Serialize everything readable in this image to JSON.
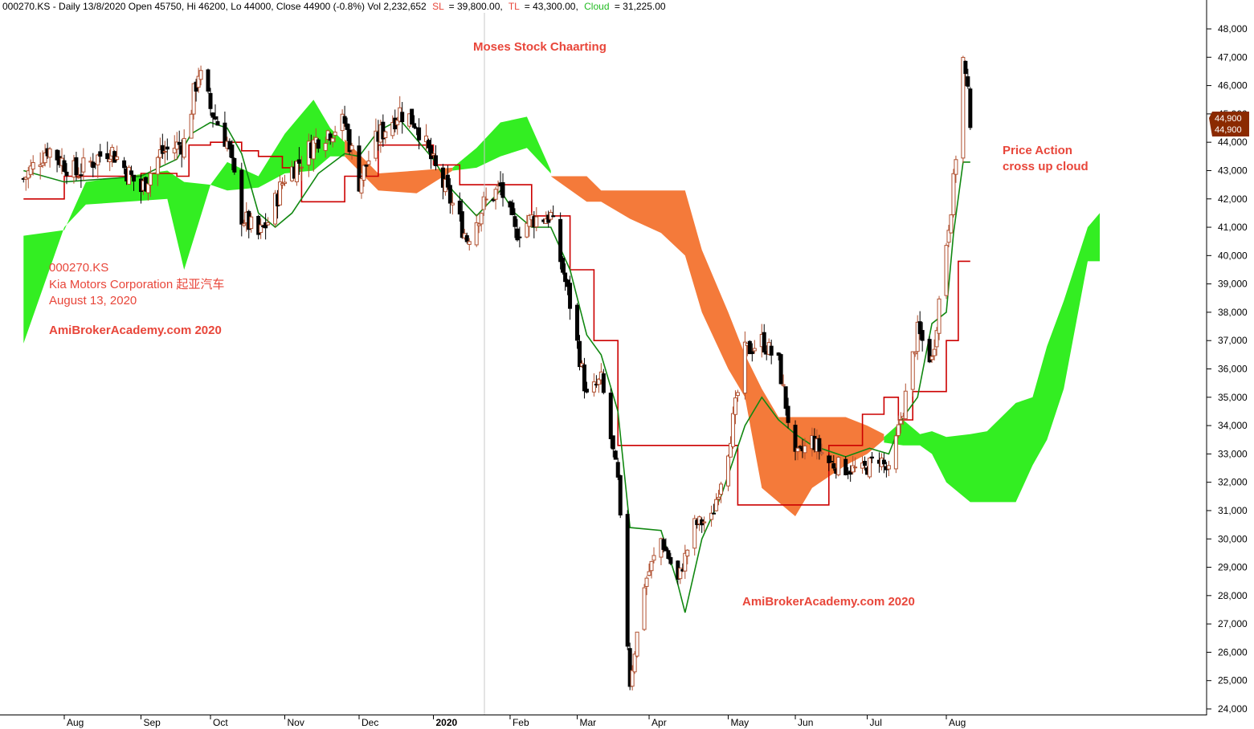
{
  "header": {
    "symbol_info": "000270.KS - Daily 13/8/2020 Open 45750, Hi 46200, Lo 44000, Close 44900 (-0.8%) Vol 2,232,652",
    "sl_label": "SL",
    "sl_value": "= 39,800.00,",
    "tl_label": "TL",
    "tl_value": "= 43,300.00,",
    "cloud_label": "Cloud",
    "cloud_value": "= 31,225.00"
  },
  "annotations": {
    "title": "Moses Stock Chaarting",
    "symbol": "000270.KS",
    "company": "Kia Motors Corporation 起亚汽车",
    "date": "August 13, 2020",
    "watermark_left": "AmiBrokerAcademy.com  2020",
    "watermark_bottom": "AmiBrokerAcademy.com 2020",
    "price_action_1": "Price Action",
    "price_action_2": "cross up cloud"
  },
  "price_badges": [
    "44,900",
    "44,900"
  ],
  "colors": {
    "cloud_bull": "#33ee22",
    "cloud_bear": "#f47a3a",
    "tenkan": "#cc0000",
    "kijun": "#118811",
    "candle_up": "#b05030",
    "candle_down": "#000000",
    "badge": "#8b2a00",
    "sl_text": "#e8463a",
    "cloud_text": "#22bb22"
  },
  "chart_data": {
    "type": "candlestick",
    "x_type": "date",
    "x_range": [
      "2019-07-15",
      "2020-08-13"
    ],
    "ylim": [
      23700,
      48500
    ],
    "y_ticks": [
      "24,000",
      "25,000",
      "26,000",
      "27,000",
      "28,000",
      "29,000",
      "30,000",
      "31,000",
      "32,000",
      "33,000",
      "34,000",
      "35,000",
      "36,000",
      "37,000",
      "38,000",
      "39,000",
      "40,000",
      "41,000",
      "42,000",
      "43,000",
      "44,000",
      "45,000",
      "46,000",
      "47,000",
      "48,000"
    ],
    "x_ticks": [
      {
        "date": "2019-08-01",
        "label": "Aug"
      },
      {
        "date": "2019-09-02",
        "label": "Sep"
      },
      {
        "date": "2019-10-01",
        "label": "Oct"
      },
      {
        "date": "2019-11-01",
        "label": "Nov"
      },
      {
        "date": "2019-12-02",
        "label": "Dec"
      },
      {
        "date": "2020-01-02",
        "label": "2020"
      },
      {
        "date": "2020-02-03",
        "label": "Feb"
      },
      {
        "date": "2020-03-02",
        "label": "Mar"
      },
      {
        "date": "2020-04-01",
        "label": "Apr"
      },
      {
        "date": "2020-05-04",
        "label": "May"
      },
      {
        "date": "2020-06-01",
        "label": "Jun"
      },
      {
        "date": "2020-07-01",
        "label": "Jul"
      },
      {
        "date": "2020-08-03",
        "label": "Aug"
      }
    ],
    "last_close": 44900,
    "sl": 39800,
    "tl": 43300,
    "cloud": 31225,
    "price": [
      [
        "2019-07-15",
        42700
      ],
      [
        "2019-07-25",
        43800
      ],
      [
        "2019-08-06",
        42900
      ],
      [
        "2019-08-20",
        43800
      ],
      [
        "2019-09-02",
        42300
      ],
      [
        "2019-09-10",
        43600
      ],
      [
        "2019-09-20",
        44000
      ],
      [
        "2019-09-26",
        46500
      ],
      [
        "2019-10-01",
        45200
      ],
      [
        "2019-10-08",
        44000
      ],
      [
        "2019-10-14",
        41400
      ],
      [
        "2019-10-21",
        40700
      ],
      [
        "2019-10-25",
        41200
      ],
      [
        "2019-11-01",
        42800
      ],
      [
        "2019-11-08",
        43400
      ],
      [
        "2019-11-15",
        44200
      ],
      [
        "2019-11-26",
        44700
      ],
      [
        "2019-12-02",
        42600
      ],
      [
        "2019-12-10",
        44200
      ],
      [
        "2019-12-19",
        45100
      ],
      [
        "2019-12-26",
        44700
      ],
      [
        "2020-01-02",
        43200
      ],
      [
        "2020-01-10",
        41800
      ],
      [
        "2020-01-16",
        40600
      ],
      [
        "2020-01-23",
        41800
      ],
      [
        "2020-01-30",
        42400
      ],
      [
        "2020-02-05",
        40800
      ],
      [
        "2020-02-12",
        41300
      ],
      [
        "2020-02-20",
        41400
      ],
      [
        "2020-02-28",
        38300
      ],
      [
        "2020-03-06",
        35000
      ],
      [
        "2020-03-12",
        35600
      ],
      [
        "2020-03-19",
        32000
      ],
      [
        "2020-03-24",
        24900
      ],
      [
        "2020-03-30",
        28400
      ],
      [
        "2020-04-06",
        30000
      ],
      [
        "2020-04-13",
        28500
      ],
      [
        "2020-04-20",
        30500
      ],
      [
        "2020-04-27",
        30700
      ],
      [
        "2020-05-04",
        33200
      ],
      [
        "2020-05-11",
        36600
      ],
      [
        "2020-05-18",
        37000
      ],
      [
        "2020-05-25",
        36200
      ],
      [
        "2020-06-01",
        32800
      ],
      [
        "2020-06-08",
        33500
      ],
      [
        "2020-06-15",
        32700
      ],
      [
        "2020-06-22",
        32500
      ],
      [
        "2020-06-29",
        32400
      ],
      [
        "2020-07-06",
        32900
      ],
      [
        "2020-07-10",
        32300
      ],
      [
        "2020-07-16",
        34600
      ],
      [
        "2020-07-22",
        37300
      ],
      [
        "2020-07-28",
        36300
      ],
      [
        "2020-08-03",
        40500
      ],
      [
        "2020-08-06",
        42500
      ],
      [
        "2020-08-10",
        46900
      ],
      [
        "2020-08-13",
        44900
      ]
    ],
    "tenkan_sen": [
      [
        "2019-07-15",
        42000
      ],
      [
        "2019-08-01",
        42800
      ],
      [
        "2019-09-02",
        42900
      ],
      [
        "2019-09-17",
        42800
      ],
      [
        "2019-09-22",
        43900
      ],
      [
        "2019-10-01",
        44000
      ],
      [
        "2019-10-10",
        44000
      ],
      [
        "2019-10-14",
        43700
      ],
      [
        "2019-10-21",
        43500
      ],
      [
        "2019-10-31",
        43100
      ],
      [
        "2019-11-08",
        41900
      ],
      [
        "2019-11-19",
        41900
      ],
      [
        "2019-11-26",
        42800
      ],
      [
        "2019-12-02",
        42800
      ],
      [
        "2019-12-10",
        43900
      ],
      [
        "2019-12-26",
        43900
      ],
      [
        "2020-01-02",
        43200
      ],
      [
        "2020-01-13",
        42500
      ],
      [
        "2020-01-30",
        42500
      ],
      [
        "2020-02-12",
        41400
      ],
      [
        "2020-02-21",
        41400
      ],
      [
        "2020-02-28",
        39500
      ],
      [
        "2020-03-09",
        37000
      ],
      [
        "2020-03-19",
        33300
      ],
      [
        "2020-04-06",
        33300
      ],
      [
        "2020-05-08",
        31200
      ],
      [
        "2020-06-08",
        31200
      ],
      [
        "2020-06-15",
        33300
      ],
      [
        "2020-06-29",
        34400
      ],
      [
        "2020-07-08",
        35000
      ],
      [
        "2020-07-14",
        34200
      ],
      [
        "2020-07-20",
        35200
      ],
      [
        "2020-07-28",
        35200
      ],
      [
        "2020-08-03",
        37000
      ],
      [
        "2020-08-08",
        39800
      ],
      [
        "2020-08-13",
        39800
      ]
    ],
    "kijun_sen": [
      [
        "2019-07-15",
        43000
      ],
      [
        "2019-08-01",
        42600
      ],
      [
        "2019-09-02",
        42800
      ],
      [
        "2019-09-17",
        43400
      ],
      [
        "2019-09-23",
        44300
      ],
      [
        "2019-10-01",
        44700
      ],
      [
        "2019-10-08",
        44500
      ],
      [
        "2019-10-14",
        43600
      ],
      [
        "2019-10-21",
        41500
      ],
      [
        "2019-10-28",
        41000
      ],
      [
        "2019-11-04",
        41500
      ],
      [
        "2019-11-15",
        42900
      ],
      [
        "2019-11-26",
        43600
      ],
      [
        "2019-12-02",
        43500
      ],
      [
        "2019-12-10",
        44400
      ],
      [
        "2019-12-19",
        44800
      ],
      [
        "2020-01-02",
        43400
      ],
      [
        "2020-01-10",
        42300
      ],
      [
        "2020-01-20",
        41400
      ],
      [
        "2020-01-30",
        42300
      ],
      [
        "2020-02-05",
        41500
      ],
      [
        "2020-02-12",
        41000
      ],
      [
        "2020-02-20",
        41000
      ],
      [
        "2020-02-28",
        39500
      ],
      [
        "2020-03-06",
        37200
      ],
      [
        "2020-03-12",
        36500
      ],
      [
        "2020-03-19",
        34500
      ],
      [
        "2020-03-24",
        30400
      ],
      [
        "2020-04-06",
        30300
      ],
      [
        "2020-04-13",
        28400
      ],
      [
        "2020-04-16",
        27400
      ],
      [
        "2020-04-23",
        30000
      ],
      [
        "2020-05-01",
        31500
      ],
      [
        "2020-05-11",
        34000
      ],
      [
        "2020-05-18",
        35000
      ],
      [
        "2020-05-25",
        34200
      ],
      [
        "2020-06-01",
        33700
      ],
      [
        "2020-06-08",
        33300
      ],
      [
        "2020-06-22",
        32900
      ],
      [
        "2020-07-02",
        33200
      ],
      [
        "2020-07-10",
        33000
      ],
      [
        "2020-07-16",
        34300
      ],
      [
        "2020-07-22",
        35000
      ],
      [
        "2020-07-28",
        37600
      ],
      [
        "2020-08-03",
        38000
      ],
      [
        "2020-08-06",
        40800
      ],
      [
        "2020-08-10",
        43300
      ],
      [
        "2020-08-13",
        43300
      ]
    ],
    "cloud_bands": [
      {
        "sentiment": "bull",
        "points": [
          [
            "2019-07-15",
            40700,
            36900
          ],
          [
            "2019-08-01",
            40900,
            41000
          ],
          [
            "2019-08-10",
            42600,
            41800
          ],
          [
            "2019-09-13",
            43000,
            42000
          ],
          [
            "2019-09-20",
            42600,
            39500
          ],
          [
            "2019-10-01",
            42500,
            42500
          ],
          [
            "2019-10-08",
            43300,
            42300
          ],
          [
            "2019-10-21",
            42800,
            42400
          ],
          [
            "2019-11-01",
            44300,
            42900
          ],
          [
            "2019-11-13",
            45500,
            43000
          ],
          [
            "2019-11-20",
            44500,
            43500
          ],
          [
            "2019-11-26",
            44000,
            43500
          ]
        ]
      },
      {
        "sentiment": "bear",
        "points": [
          [
            "2019-11-26",
            44100,
            43500
          ],
          [
            "2019-12-10",
            42900,
            42300
          ],
          [
            "2019-12-26",
            43000,
            42200
          ],
          [
            "2020-01-10",
            43100,
            43000
          ]
        ]
      },
      {
        "sentiment": "bull",
        "points": [
          [
            "2020-01-10",
            43100,
            43000
          ],
          [
            "2020-01-20",
            43800,
            43100
          ],
          [
            "2020-01-30",
            44700,
            43500
          ],
          [
            "2020-02-10",
            44900,
            43800
          ],
          [
            "2020-02-20",
            43000,
            42900
          ]
        ]
      },
      {
        "sentiment": "bear",
        "points": [
          [
            "2020-02-20",
            42800,
            42800
          ],
          [
            "2020-03-06",
            42800,
            41900
          ],
          [
            "2020-03-12",
            42300,
            41900
          ],
          [
            "2020-03-24",
            42300,
            41300
          ],
          [
            "2020-04-06",
            42300,
            40800
          ],
          [
            "2020-04-16",
            42300,
            40000
          ],
          [
            "2020-04-23",
            40200,
            38000
          ],
          [
            "2020-05-04",
            38000,
            36000
          ],
          [
            "2020-05-11",
            36500,
            35000
          ],
          [
            "2020-05-18",
            35300,
            31800
          ],
          [
            "2020-05-25",
            34300,
            31300
          ],
          [
            "2020-06-01",
            34300,
            30800
          ],
          [
            "2020-06-08",
            34300,
            31800
          ],
          [
            "2020-06-15",
            34300,
            32200
          ],
          [
            "2020-06-22",
            34300,
            32600
          ],
          [
            "2020-07-01",
            34000,
            33000
          ],
          [
            "2020-07-08",
            33700,
            33500
          ]
        ]
      },
      {
        "sentiment": "bull",
        "points": [
          [
            "2020-07-08",
            33600,
            33400
          ],
          [
            "2020-07-16",
            34200,
            33300
          ],
          [
            "2020-07-23",
            33700,
            33300
          ],
          [
            "2020-07-28",
            33800,
            33000
          ],
          [
            "2020-08-03",
            33600,
            32000
          ],
          [
            "2020-08-13",
            33700,
            31300
          ],
          [
            "2020-08-20",
            33800,
            31300
          ],
          [
            "2020-09-01",
            34800,
            31300
          ],
          [
            "2020-09-08",
            35000,
            32600
          ],
          [
            "2020-09-14",
            36800,
            33500
          ],
          [
            "2020-09-21",
            38400,
            35300
          ],
          [
            "2020-10-01",
            41000,
            39800
          ],
          [
            "2020-10-06",
            41500,
            39800
          ]
        ]
      }
    ]
  }
}
